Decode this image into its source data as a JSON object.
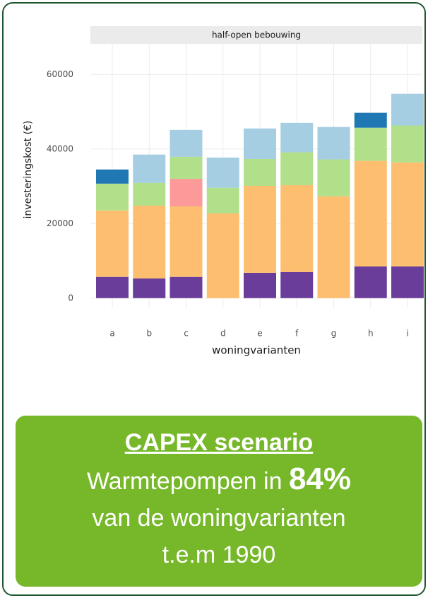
{
  "chart_data": {
    "type": "stacked_bar",
    "strip_title": "half-open bebouwing",
    "ylabel": "investeringskost (€)",
    "xlabel": "woningvarianten",
    "categories": [
      "a",
      "b",
      "c",
      "d",
      "e",
      "f",
      "g",
      "h",
      "i"
    ],
    "series": [
      {
        "color": "#6a3d9a",
        "values": [
          5700,
          5300,
          5700,
          0,
          6800,
          7000,
          0,
          8500,
          8500
        ]
      },
      {
        "color": "#fdbf6f",
        "values": [
          17800,
          19500,
          18900,
          22700,
          23300,
          23300,
          27300,
          28300,
          27900
        ]
      },
      {
        "color": "#fb9a99",
        "values": [
          0,
          0,
          7400,
          0,
          0,
          0,
          0,
          0,
          0
        ]
      },
      {
        "color": "#b2df8a",
        "values": [
          7200,
          6100,
          5900,
          6900,
          7200,
          8800,
          9900,
          8900,
          9900
        ]
      },
      {
        "color": "#a6cee3",
        "values": [
          0,
          7600,
          7200,
          8100,
          8200,
          7900,
          8700,
          0,
          8500
        ]
      },
      {
        "color": "#1f78b4",
        "values": [
          3800,
          0,
          0,
          0,
          0,
          0,
          0,
          4000,
          0
        ]
      }
    ],
    "ylim": [
      -2700,
      68200
    ],
    "yticks": [
      0,
      20000,
      40000,
      60000
    ],
    "grid": true
  },
  "caption": {
    "heading": "CAPEX scenario",
    "line1": "Warmtepompen in ",
    "highlight": "84%",
    "line2": "van de woningvarianten",
    "line3": "t.e.m 1990"
  }
}
